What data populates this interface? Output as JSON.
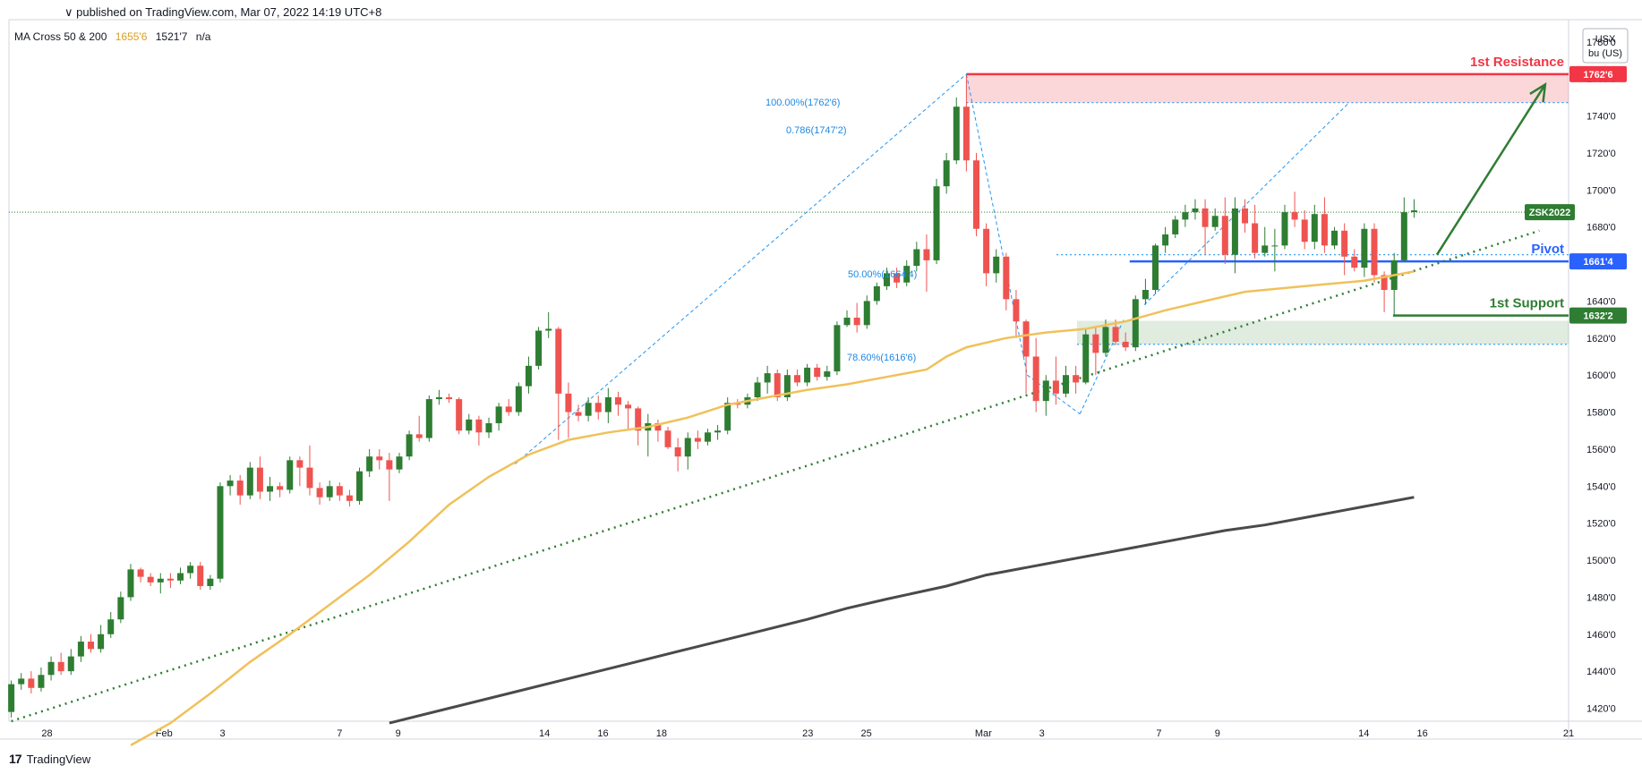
{
  "header": {
    "published": "∨ published on TradingView.com, Mar 07, 2022 14:19 UTC+8"
  },
  "indicator": {
    "name": "MA Cross 50 & 200",
    "ma50_value": "1655'6",
    "ma200_value": "1521'7",
    "extra": "n/a"
  },
  "currency_box": {
    "line1": "USX",
    "line2": "bu (US)"
  },
  "footer": {
    "logo": "17",
    "brand": "TradingView"
  },
  "colors": {
    "up": "#2e7d32",
    "down": "#ef5350",
    "ma50": "#f0c15a",
    "ma200": "#4a4a4a",
    "resistance": "#f23645",
    "pivot": "#2962ff",
    "support": "#2e7d32",
    "fib": "#2196f3"
  },
  "chart_data": {
    "type": "candlestick",
    "y_axis": {
      "ticks": [
        14200,
        14400,
        14600,
        14800,
        15000,
        15200,
        15400,
        15600,
        15800,
        16000,
        16200,
        16400,
        16600,
        16800,
        17000,
        17200,
        17400,
        17600,
        17800
      ],
      "tick_labels": [
        "1420'0",
        "1440'0",
        "1460'0",
        "1480'0",
        "1500'0",
        "1520'0",
        "1540'0",
        "1560'0",
        "1580'0",
        "1600'0",
        "1620'0",
        "1640'0",
        "1660'0",
        "1680'0",
        "1700'0",
        "1720'0",
        "1740'0",
        "1760'0",
        "1780'0"
      ],
      "range": [
        14130,
        17920
      ]
    },
    "x_axis": {
      "labels": [
        {
          "text": "28",
          "day": 0
        },
        {
          "text": "Feb",
          "day": 4
        },
        {
          "text": "3",
          "day": 6
        },
        {
          "text": "7",
          "day": 10
        },
        {
          "text": "9",
          "day": 12
        },
        {
          "text": "14",
          "day": 17
        },
        {
          "text": "16",
          "day": 19
        },
        {
          "text": "18",
          "day": 21
        },
        {
          "text": "23",
          "day": 26
        },
        {
          "text": "25",
          "day": 28
        },
        {
          "text": "Mar",
          "day": 32
        },
        {
          "text": "3",
          "day": 34
        },
        {
          "text": "7",
          "day": 38
        },
        {
          "text": "9",
          "day": 40
        },
        {
          "text": "14",
          "day": 45
        },
        {
          "text": "16",
          "day": 47
        },
        {
          "text": "21",
          "day": 52
        }
      ],
      "range_days": [
        -1.3,
        52
      ]
    },
    "candles": [
      [
        -1.22,
        14180,
        14330,
        14150,
        14350
      ],
      [
        -0.88,
        14330,
        14360,
        14300,
        14390
      ],
      [
        -0.54,
        14360,
        14310,
        14280,
        14400
      ],
      [
        -0.2,
        14310,
        14380,
        14290,
        14420
      ],
      [
        0.14,
        14380,
        14450,
        14350,
        14480
      ],
      [
        0.48,
        14450,
        14400,
        14380,
        14500
      ],
      [
        0.82,
        14400,
        14480,
        14380,
        14520
      ],
      [
        1.16,
        14480,
        14560,
        14450,
        14590
      ],
      [
        1.5,
        14560,
        14520,
        14500,
        14600
      ],
      [
        1.84,
        14520,
        14600,
        14500,
        14650
      ],
      [
        2.18,
        14600,
        14680,
        14580,
        14720
      ],
      [
        2.52,
        14680,
        14800,
        14660,
        14830
      ],
      [
        2.86,
        14800,
        14950,
        14780,
        14980
      ],
      [
        3.2,
        14950,
        14910,
        14880,
        14960
      ],
      [
        3.54,
        14910,
        14880,
        14860,
        14930
      ],
      [
        3.88,
        14880,
        14900,
        14820,
        14930
      ],
      [
        4.22,
        14900,
        14890,
        14850,
        14930
      ],
      [
        4.56,
        14890,
        14930,
        14870,
        14960
      ],
      [
        4.9,
        14930,
        14970,
        14900,
        14990
      ],
      [
        5.24,
        14970,
        14860,
        14840,
        14990
      ],
      [
        5.58,
        14860,
        14900,
        14840,
        14920
      ],
      [
        5.92,
        14900,
        15400,
        14880,
        15420
      ],
      [
        6.26,
        15400,
        15430,
        15350,
        15460
      ],
      [
        6.6,
        15430,
        15350,
        15300,
        15460
      ],
      [
        6.94,
        15350,
        15500,
        15330,
        15530
      ],
      [
        7.28,
        15500,
        15370,
        15330,
        15560
      ],
      [
        7.62,
        15370,
        15400,
        15320,
        15450
      ],
      [
        7.96,
        15400,
        15380,
        15340,
        15420
      ],
      [
        8.3,
        15380,
        15540,
        15360,
        15560
      ],
      [
        8.64,
        15540,
        15500,
        15400,
        15560
      ],
      [
        8.98,
        15500,
        15390,
        15350,
        15620
      ],
      [
        9.32,
        15390,
        15340,
        15300,
        15420
      ],
      [
        9.66,
        15340,
        15400,
        15320,
        15430
      ],
      [
        10.0,
        15400,
        15350,
        15320,
        15420
      ],
      [
        10.34,
        15350,
        15320,
        15290,
        15380
      ],
      [
        10.68,
        15320,
        15480,
        15300,
        15500
      ],
      [
        11.02,
        15480,
        15560,
        15450,
        15600
      ],
      [
        11.36,
        15560,
        15540,
        15490,
        15600
      ],
      [
        11.7,
        15540,
        15490,
        15320,
        15580
      ],
      [
        12.04,
        15490,
        15560,
        15470,
        15580
      ],
      [
        12.38,
        15560,
        15680,
        15540,
        15700
      ],
      [
        12.72,
        15680,
        15660,
        15640,
        15780
      ],
      [
        13.06,
        15660,
        15870,
        15640,
        15890
      ],
      [
        13.4,
        15870,
        15880,
        15840,
        15920
      ],
      [
        13.74,
        15880,
        15870,
        15850,
        15900
      ],
      [
        14.08,
        15870,
        15700,
        15680,
        15880
      ],
      [
        14.42,
        15700,
        15760,
        15680,
        15790
      ],
      [
        14.76,
        15760,
        15690,
        15620,
        15780
      ],
      [
        15.1,
        15690,
        15740,
        15660,
        15770
      ],
      [
        15.44,
        15740,
        15830,
        15700,
        15850
      ],
      [
        15.78,
        15830,
        15800,
        15780,
        15870
      ],
      [
        16.12,
        15800,
        15940,
        15780,
        15960
      ],
      [
        16.46,
        15940,
        16050,
        15900,
        16100
      ],
      [
        16.8,
        16050,
        16240,
        16030,
        16260
      ],
      [
        17.14,
        16240,
        16250,
        16200,
        16340
      ],
      [
        17.48,
        16250,
        15900,
        15650,
        16260
      ],
      [
        17.82,
        15900,
        15800,
        15660,
        15960
      ],
      [
        18.16,
        15800,
        15780,
        15750,
        15840
      ],
      [
        18.5,
        15780,
        15850,
        15750,
        15880
      ],
      [
        18.84,
        15850,
        15800,
        15760,
        15890
      ],
      [
        19.18,
        15800,
        15880,
        15740,
        15930
      ],
      [
        19.52,
        15880,
        15840,
        15780,
        15910
      ],
      [
        19.86,
        15840,
        15820,
        15700,
        15860
      ],
      [
        20.2,
        15820,
        15700,
        15620,
        15830
      ],
      [
        20.54,
        15700,
        15740,
        15560,
        15790
      ],
      [
        20.88,
        15740,
        15700,
        15640,
        15760
      ],
      [
        21.22,
        15700,
        15610,
        15600,
        15720
      ],
      [
        21.56,
        15610,
        15560,
        15480,
        15660
      ],
      [
        21.9,
        15560,
        15660,
        15490,
        15690
      ],
      [
        22.24,
        15660,
        15640,
        15600,
        15700
      ],
      [
        22.58,
        15640,
        15690,
        15620,
        15710
      ],
      [
        22.92,
        15690,
        15700,
        15650,
        15730
      ],
      [
        23.26,
        15700,
        15850,
        15680,
        15880
      ],
      [
        23.6,
        15850,
        15840,
        15820,
        15870
      ],
      [
        23.94,
        15840,
        15880,
        15820,
        15900
      ],
      [
        24.28,
        15880,
        15960,
        15860,
        15990
      ],
      [
        24.62,
        15960,
        16010,
        15900,
        16050
      ],
      [
        24.96,
        16010,
        15880,
        15860,
        16030
      ],
      [
        25.3,
        15880,
        16000,
        15860,
        16030
      ],
      [
        25.64,
        16000,
        15960,
        15940,
        16030
      ],
      [
        25.98,
        15960,
        16040,
        15940,
        16060
      ],
      [
        26.32,
        16040,
        15990,
        15970,
        16060
      ],
      [
        26.66,
        15990,
        16020,
        15970,
        16050
      ],
      [
        27.0,
        16020,
        16270,
        16000,
        16290
      ],
      [
        27.34,
        16270,
        16310,
        16260,
        16350
      ],
      [
        27.68,
        16310,
        16270,
        16230,
        16390
      ],
      [
        28.02,
        16270,
        16400,
        16250,
        16430
      ],
      [
        28.36,
        16400,
        16480,
        16380,
        16500
      ],
      [
        28.7,
        16480,
        16550,
        16460,
        16580
      ],
      [
        29.04,
        16550,
        16500,
        16470,
        16580
      ],
      [
        29.38,
        16500,
        16590,
        16480,
        16620
      ],
      [
        29.72,
        16590,
        16680,
        16560,
        16720
      ],
      [
        30.06,
        16680,
        16620,
        16450,
        16760
      ],
      [
        30.4,
        16620,
        17020,
        16600,
        17060
      ],
      [
        30.74,
        17020,
        17160,
        16980,
        17200
      ],
      [
        31.08,
        17160,
        17450,
        17140,
        17500
      ],
      [
        31.42,
        17450,
        17160,
        17100,
        17620
      ],
      [
        31.76,
        17160,
        16790,
        16750,
        17200
      ],
      [
        32.1,
        16790,
        16550,
        16480,
        16820
      ],
      [
        32.44,
        16550,
        16640,
        16500,
        16680
      ],
      [
        32.78,
        16640,
        16410,
        16350,
        16660
      ],
      [
        33.12,
        16410,
        16290,
        16200,
        16460
      ],
      [
        33.46,
        16290,
        16100,
        15900,
        16300
      ],
      [
        33.8,
        16100,
        15860,
        15800,
        16200
      ],
      [
        34.14,
        15860,
        15970,
        15780,
        16000
      ],
      [
        34.48,
        15970,
        15900,
        15840,
        16100
      ],
      [
        34.82,
        15900,
        16000,
        15880,
        16050
      ],
      [
        35.16,
        16000,
        15960,
        15900,
        16050
      ],
      [
        35.5,
        15960,
        16220,
        15950,
        16250
      ],
      [
        35.84,
        16220,
        16120,
        16000,
        16260
      ],
      [
        36.18,
        16120,
        16260,
        16100,
        16300
      ],
      [
        36.52,
        16260,
        16180,
        16160,
        16300
      ],
      [
        36.86,
        16180,
        16150,
        16130,
        16230
      ],
      [
        37.2,
        16150,
        16410,
        16130,
        16430
      ],
      [
        37.54,
        16410,
        16460,
        16380,
        16520
      ],
      [
        37.88,
        16460,
        16700,
        16440,
        16710
      ],
      [
        38.22,
        16700,
        16760,
        16660,
        16800
      ],
      [
        38.56,
        16760,
        16840,
        16740,
        16860
      ],
      [
        38.9,
        16840,
        16880,
        16800,
        16920
      ],
      [
        39.24,
        16880,
        16900,
        16840,
        16950
      ],
      [
        39.58,
        16900,
        16800,
        16650,
        16950
      ],
      [
        39.92,
        16800,
        16860,
        16780,
        16900
      ],
      [
        40.26,
        16860,
        16650,
        16600,
        16960
      ],
      [
        40.6,
        16650,
        16900,
        16550,
        16960
      ],
      [
        40.94,
        16900,
        16820,
        16770,
        16950
      ],
      [
        41.28,
        16820,
        16660,
        16630,
        16920
      ],
      [
        41.62,
        16660,
        16700,
        16640,
        16800
      ],
      [
        41.96,
        16700,
        16700,
        16560,
        16790
      ],
      [
        42.3,
        16700,
        16880,
        16680,
        16920
      ],
      [
        42.64,
        16880,
        16840,
        16800,
        16990
      ],
      [
        42.98,
        16840,
        16720,
        16680,
        16890
      ],
      [
        43.32,
        16720,
        16870,
        16680,
        16920
      ],
      [
        43.66,
        16870,
        16700,
        16660,
        16960
      ],
      [
        44.0,
        16700,
        16780,
        16680,
        16800
      ],
      [
        44.34,
        16780,
        16640,
        16540,
        16820
      ],
      [
        44.68,
        16640,
        16580,
        16560,
        16680
      ],
      [
        45.02,
        16580,
        16790,
        16530,
        16820
      ],
      [
        45.36,
        16790,
        16540,
        16500,
        16820
      ],
      [
        45.7,
        16540,
        16460,
        16340,
        16560
      ],
      [
        46.04,
        16460,
        16620,
        16320,
        16660
      ],
      [
        46.38,
        16620,
        16880,
        16610,
        16960
      ],
      [
        46.72,
        16880,
        16890,
        16850,
        16950
      ]
    ],
    "ma50": [
      [
        2.86,
        14000
      ],
      [
        4.22,
        14120
      ],
      [
        5.58,
        14280
      ],
      [
        6.94,
        14450
      ],
      [
        8.3,
        14600
      ],
      [
        9.66,
        14760
      ],
      [
        11.02,
        14920
      ],
      [
        12.38,
        15100
      ],
      [
        13.74,
        15300
      ],
      [
        15.1,
        15450
      ],
      [
        16.46,
        15570
      ],
      [
        17.82,
        15650
      ],
      [
        19.18,
        15690
      ],
      [
        20.54,
        15720
      ],
      [
        21.9,
        15770
      ],
      [
        23.26,
        15840
      ],
      [
        24.62,
        15880
      ],
      [
        25.98,
        15920
      ],
      [
        27.34,
        15950
      ],
      [
        28.7,
        15990
      ],
      [
        30.06,
        16030
      ],
      [
        30.74,
        16100
      ],
      [
        31.42,
        16150
      ],
      [
        32.78,
        16200
      ],
      [
        34.14,
        16230
      ],
      [
        35.5,
        16250
      ],
      [
        36.86,
        16290
      ],
      [
        38.22,
        16350
      ],
      [
        39.58,
        16400
      ],
      [
        40.94,
        16450
      ],
      [
        42.3,
        16470
      ],
      [
        43.66,
        16490
      ],
      [
        45.02,
        16510
      ],
      [
        46.04,
        16540
      ],
      [
        46.72,
        16560
      ]
    ],
    "ma200": [
      [
        11.7,
        14120
      ],
      [
        13.74,
        14200
      ],
      [
        15.78,
        14280
      ],
      [
        17.82,
        14360
      ],
      [
        19.86,
        14440
      ],
      [
        21.9,
        14520
      ],
      [
        23.94,
        14600
      ],
      [
        25.98,
        14680
      ],
      [
        27.34,
        14740
      ],
      [
        28.7,
        14790
      ],
      [
        30.74,
        14860
      ],
      [
        32.1,
        14920
      ],
      [
        33.46,
        14960
      ],
      [
        34.82,
        15000
      ],
      [
        36.18,
        15040
      ],
      [
        37.54,
        15080
      ],
      [
        38.9,
        15120
      ],
      [
        40.26,
        15160
      ],
      [
        41.62,
        15190
      ],
      [
        42.98,
        15230
      ],
      [
        44.34,
        15270
      ],
      [
        45.7,
        15310
      ],
      [
        46.72,
        15340
      ]
    ],
    "levels": {
      "resistance": {
        "label": "1st Resistance",
        "value": 17626,
        "value_label": "1762'6",
        "zone_low": 17472
      },
      "pivot": {
        "label": "Pivot",
        "value": 16614,
        "value_label": "1661'4",
        "dotted": 16650
      },
      "support": {
        "label": "1st Support",
        "value": 16322,
        "value_label": "1632'2",
        "zone_low": 16166
      },
      "last_price": {
        "label": "ZSK2022",
        "value": 16880
      }
    },
    "fib_labels": [
      {
        "text": "100.00%(1762'6)",
        "value": 17626
      },
      {
        "text": "0.786(1747'2)",
        "value": 17472
      },
      {
        "text": "50.00%(1664'4)",
        "value": 16644
      },
      {
        "text": "78.60%(1616'6)",
        "value": 16166
      }
    ],
    "trendline": {
      "from": [
        -1.22,
        14130
      ],
      "to": [
        51.0,
        16780
      ]
    },
    "arrow": {
      "from": [
        47.5,
        16650
      ],
      "to": [
        51.2,
        17570
      ]
    }
  }
}
